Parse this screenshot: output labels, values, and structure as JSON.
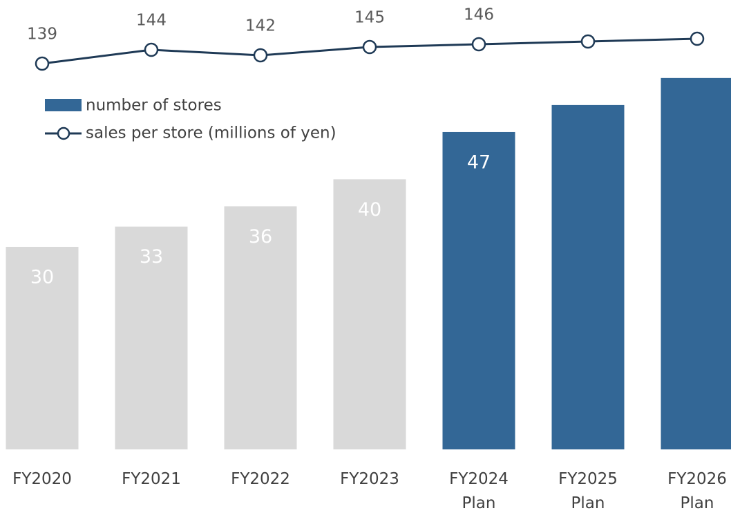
{
  "chart_data": {
    "type": "bar",
    "categories": [
      "FY2020",
      "FY2021",
      "FY2022",
      "FY2023",
      "FY2024 Plan",
      "FY2025 Plan",
      "FY2026 Plan"
    ],
    "ylim": [
      0,
      60
    ],
    "y2lim": [
      130,
      150
    ],
    "series": [
      {
        "name": "number of stores",
        "type": "bar",
        "colors": [
          "#d9d9d9",
          "#d9d9d9",
          "#d9d9d9",
          "#d9d9d9",
          "#336796",
          "#336796",
          "#336796"
        ],
        "color": "#336796",
        "values": [
          30,
          33,
          36,
          40,
          47,
          51,
          55
        ],
        "value_labels": [
          "30",
          "33",
          "36",
          "40",
          "47",
          null,
          null
        ]
      },
      {
        "name": "sales per store (millions of yen)",
        "type": "line",
        "axis": "y2",
        "color": "#1f3a56",
        "values": [
          139,
          144,
          142,
          145,
          146,
          147,
          148
        ],
        "value_labels": [
          "139",
          "144",
          "142",
          "145",
          "146",
          null,
          null
        ]
      }
    ]
  }
}
